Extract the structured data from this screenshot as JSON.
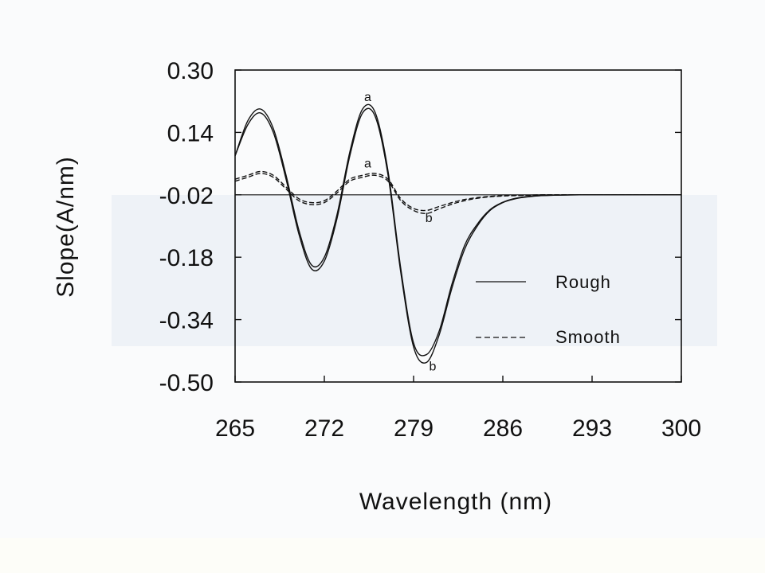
{
  "chart_data": {
    "type": "line",
    "title": "",
    "xlabel": "Wavelength (nm)",
    "ylabel": "Slope(A/nm)",
    "xlim": [
      265,
      300
    ],
    "ylim": [
      -0.5,
      0.3
    ],
    "x_ticks": [
      "265",
      "272",
      "279",
      "286",
      "293",
      "300"
    ],
    "y_ticks": [
      "0.30",
      "0.14",
      "-0.02",
      "-0.18",
      "-0.34",
      "-0.50"
    ],
    "grid": false,
    "legend_position": "right-center",
    "series": [
      {
        "name": "Rough",
        "style": "solid",
        "x": [
          265,
          266,
          267,
          268,
          269,
          270,
          271,
          272,
          273,
          274,
          275,
          276,
          277,
          278,
          279,
          280,
          281,
          282,
          283,
          284,
          285,
          286,
          287,
          288,
          289,
          290,
          292,
          294,
          296,
          298,
          300
        ],
        "y": [
          0.08,
          0.16,
          0.19,
          0.14,
          0.02,
          -0.12,
          -0.21,
          -0.19,
          -0.08,
          0.08,
          0.19,
          0.18,
          0.03,
          -0.22,
          -0.41,
          -0.45,
          -0.38,
          -0.26,
          -0.16,
          -0.1,
          -0.06,
          -0.04,
          -0.03,
          -0.025,
          -0.022,
          -0.021,
          -0.02,
          -0.02,
          -0.02,
          -0.02,
          -0.02
        ]
      },
      {
        "name": "Rough",
        "style": "solid",
        "x": [
          265,
          266,
          267,
          268,
          269,
          270,
          271,
          272,
          273,
          274,
          275,
          276,
          277,
          278,
          279,
          280,
          281,
          282,
          283,
          284,
          285,
          286,
          287,
          288,
          289,
          290,
          292,
          294,
          296,
          298,
          300
        ],
        "y": [
          0.08,
          0.17,
          0.2,
          0.15,
          0.03,
          -0.11,
          -0.2,
          -0.18,
          -0.07,
          0.09,
          0.2,
          0.19,
          0.04,
          -0.21,
          -0.4,
          -0.43,
          -0.37,
          -0.25,
          -0.15,
          -0.095,
          -0.058,
          -0.039,
          -0.029,
          -0.024,
          -0.022,
          -0.021,
          -0.02,
          -0.02,
          -0.02,
          -0.02,
          -0.02
        ]
      },
      {
        "name": "Smooth",
        "style": "dashed",
        "x": [
          265,
          266,
          267,
          268,
          269,
          270,
          271,
          272,
          273,
          274,
          275,
          276,
          277,
          278,
          279,
          280,
          281,
          282,
          283,
          284,
          285,
          286,
          287,
          288,
          289,
          290,
          292,
          294,
          296,
          298,
          300
        ],
        "y": [
          0.02,
          0.03,
          0.04,
          0.03,
          0.0,
          -0.03,
          -0.04,
          -0.035,
          -0.01,
          0.02,
          0.03,
          0.035,
          0.02,
          -0.03,
          -0.055,
          -0.06,
          -0.05,
          -0.04,
          -0.032,
          -0.027,
          -0.024,
          -0.022,
          -0.021,
          -0.021,
          -0.02,
          -0.02,
          -0.02,
          -0.02,
          -0.02,
          -0.02,
          -0.02
        ]
      },
      {
        "name": "Smooth",
        "style": "dashed",
        "x": [
          265,
          266,
          267,
          268,
          269,
          270,
          271,
          272,
          273,
          274,
          275,
          276,
          277,
          278,
          279,
          280,
          281,
          282,
          283,
          284,
          285,
          286,
          287,
          288,
          289,
          290,
          292,
          294,
          296,
          298,
          300
        ],
        "y": [
          0.015,
          0.025,
          0.035,
          0.025,
          -0.005,
          -0.035,
          -0.045,
          -0.04,
          -0.015,
          0.015,
          0.025,
          0.03,
          0.015,
          -0.035,
          -0.06,
          -0.068,
          -0.056,
          -0.044,
          -0.035,
          -0.029,
          -0.025,
          -0.023,
          -0.022,
          -0.021,
          -0.02,
          -0.02,
          -0.02,
          -0.02,
          -0.02,
          -0.02,
          -0.02
        ]
      }
    ],
    "reference_line": {
      "y": -0.02
    },
    "legend": [
      {
        "label": "Rough",
        "style": "solid"
      },
      {
        "label": "Smooth",
        "style": "dashed"
      }
    ],
    "annotations": [
      {
        "text": "a",
        "x": 275.4,
        "y": 0.22
      },
      {
        "text": "a",
        "x": 275.4,
        "y": 0.05
      },
      {
        "text": "b",
        "x": 280.2,
        "y": -0.09
      },
      {
        "text": "b",
        "x": 280.5,
        "y": -0.47
      }
    ]
  }
}
